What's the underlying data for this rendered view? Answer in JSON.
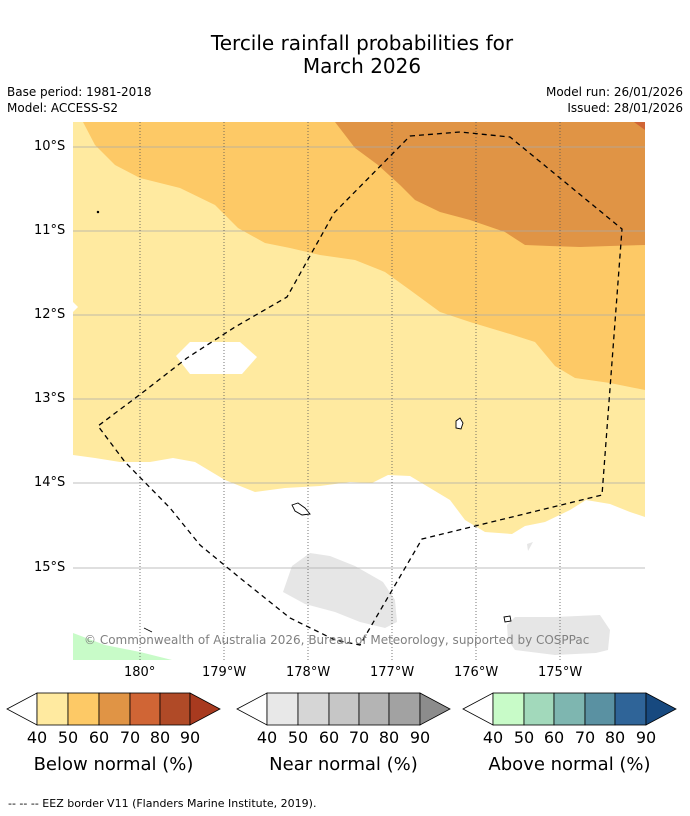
{
  "title_line1": "Tercile rainfall probabilities for",
  "title_line2": "March 2026",
  "meta": {
    "base_period": "Base period: 1981-2018",
    "model": "Model: ACCESS-S2",
    "model_run": "Model run: 26/01/2026",
    "issued": "Issued: 28/01/2026"
  },
  "axes": {
    "lat_labels": [
      "10°S",
      "11°S",
      "12°S",
      "13°S",
      "14°S",
      "15°S"
    ],
    "lon_labels": [
      "180°",
      "179°W",
      "178°W",
      "177°W",
      "176°W",
      "175°W"
    ]
  },
  "copyright": "© Commonwealth of Australia 2026, Bureau of Meteorology, supported by COSPPac",
  "legend": {
    "below": {
      "title": "Below normal (%)",
      "colors": [
        "#ffeaa0",
        "#fdc966",
        "#e09445",
        "#d06535",
        "#b04a27",
        "#a83a1f"
      ]
    },
    "near": {
      "title": "Near normal (%)",
      "colors": [
        "#e8e8e8",
        "#d6d6d6",
        "#c6c6c6",
        "#b4b4b4",
        "#a2a2a2",
        "#8c8c8c"
      ]
    },
    "above": {
      "title": "Above normal (%)",
      "colors": [
        "#c8fbc8",
        "#a2d9bb",
        "#7eb6b0",
        "#5a91a2",
        "#2f6498",
        "#17497f"
      ]
    },
    "ticks": [
      "40",
      "50",
      "60",
      "70",
      "80",
      "90"
    ]
  },
  "footnote": "--  --  -- EEZ border V11 (Flanders Marine Institute, 2019)."
}
